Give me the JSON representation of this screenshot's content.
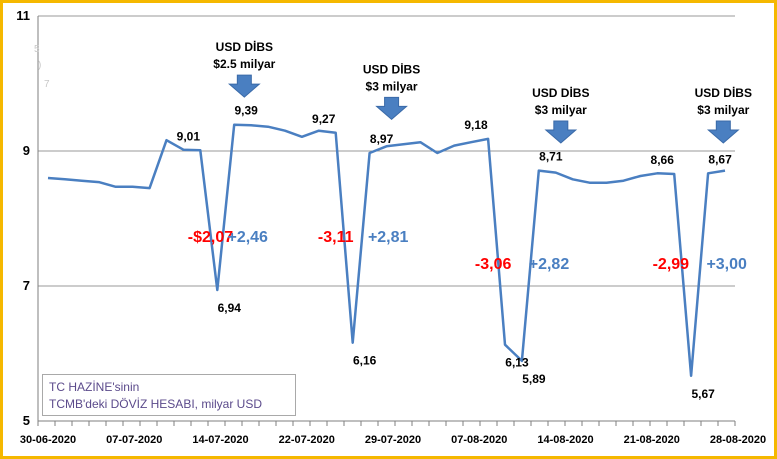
{
  "chart_data": {
    "type": "line",
    "title": "",
    "xlabel": "",
    "ylabel": "",
    "ylim": [
      5,
      11
    ],
    "yticks": [
      5,
      7,
      9,
      11
    ],
    "xtick_labels": [
      "30-06-2020",
      "07-07-2020",
      "14-07-2020",
      "22-07-2020",
      "29-07-2020",
      "07-08-2020",
      "14-08-2020",
      "21-08-2020",
      "28-08-2020"
    ],
    "grid": true,
    "series": [
      {
        "name": "",
        "color": "#4a7fc1",
        "values": [
          8.6,
          8.58,
          8.56,
          8.54,
          8.47,
          8.47,
          8.45,
          9.16,
          9.02,
          9.01,
          6.94,
          9.39,
          9.38,
          9.36,
          9.3,
          9.21,
          9.3,
          9.27,
          6.16,
          8.97,
          9.07,
          9.1,
          9.13,
          8.97,
          9.08,
          9.13,
          9.18,
          6.13,
          5.89,
          8.71,
          8.68,
          8.58,
          8.53,
          8.53,
          8.56,
          8.63,
          8.67,
          8.66,
          5.67,
          8.67,
          8.71
        ]
      }
    ],
    "point_labels": [
      {
        "i": 9,
        "text": "9,01"
      },
      {
        "i": 10,
        "text": "6,94"
      },
      {
        "i": 11,
        "text": "9,39"
      },
      {
        "i": 17,
        "text": "9,27"
      },
      {
        "i": 18,
        "text": "6,16"
      },
      {
        "i": 19,
        "text": "8,97"
      },
      {
        "i": 26,
        "text": "9,18"
      },
      {
        "i": 27,
        "text": "6,13"
      },
      {
        "i": 28,
        "text": "5,89"
      },
      {
        "i": 29,
        "text": "8,71"
      },
      {
        "i": 37,
        "text": "8,66"
      },
      {
        "i": 38,
        "text": "5,67"
      },
      {
        "i": 39,
        "text": "8,67"
      }
    ],
    "change_labels": [
      {
        "text": "-$2,07",
        "color": "#ff0000",
        "at_x": 9.6,
        "at_y": 7.65
      },
      {
        "text": "+2,46",
        "color": "#4a7fc1",
        "at_x": 11.8,
        "at_y": 7.65
      },
      {
        "text": "-3,11",
        "color": "#ff0000",
        "at_x": 17.0,
        "at_y": 7.65
      },
      {
        "text": "+2,81",
        "color": "#4a7fc1",
        "at_x": 20.1,
        "at_y": 7.65
      },
      {
        "text": "-3,06",
        "color": "#ff0000",
        "at_x": 26.3,
        "at_y": 7.25
      },
      {
        "text": "+2,82",
        "color": "#4a7fc1",
        "at_x": 29.6,
        "at_y": 7.25
      },
      {
        "text": "-2,99",
        "color": "#ff0000",
        "at_x": 36.8,
        "at_y": 7.25
      },
      {
        "text": "+3,00",
        "color": "#4a7fc1",
        "at_x": 40.1,
        "at_y": 7.25
      }
    ],
    "annotations": [
      {
        "line1": "USD DİBS",
        "line2": "$2.5 milyar",
        "at_x": 11.6,
        "at_y": 10.48
      },
      {
        "line1": "USD DİBS",
        "line2": "$3 milyar",
        "at_x": 20.3,
        "at_y": 10.15
      },
      {
        "line1": "USD DİBS",
        "line2": "$3 milyar",
        "at_x": 30.3,
        "at_y": 9.8
      },
      {
        "line1": "USD DİBS",
        "line2": "$3 milyar",
        "at_x": 39.9,
        "at_y": 9.8
      }
    ],
    "legend_text": [
      "TC HAZİNE'sinin",
      "TCMB'deki DÖVİZ HESABI, milyar USD"
    ],
    "stray_marks": [
      "5",
      ")",
      "7"
    ]
  }
}
